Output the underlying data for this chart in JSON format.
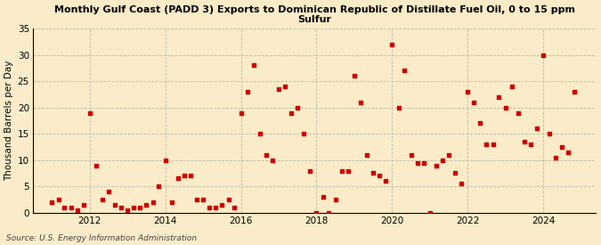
{
  "title": "Monthly Gulf Coast (PADD 3) Exports to Dominican Republic of Distillate Fuel Oil, 0 to 15 ppm\nSulfur",
  "ylabel": "Thousand Barrels per Day",
  "source": "Source: U.S. Energy Information Administration",
  "bg_color": "#faecc8",
  "plot_bg_color": "#faecc8",
  "marker_color": "#cc0000",
  "ylim": [
    0,
    35
  ],
  "yticks": [
    0,
    5,
    10,
    15,
    20,
    25,
    30,
    35
  ],
  "x_values": [
    2011.0,
    2011.17,
    2011.33,
    2011.5,
    2011.67,
    2011.83,
    2012.0,
    2012.17,
    2012.33,
    2012.5,
    2012.67,
    2012.83,
    2013.0,
    2013.17,
    2013.33,
    2013.5,
    2013.67,
    2013.83,
    2014.0,
    2014.17,
    2014.33,
    2014.5,
    2014.67,
    2014.83,
    2015.0,
    2015.17,
    2015.33,
    2015.5,
    2015.67,
    2015.83,
    2016.0,
    2016.17,
    2016.33,
    2016.5,
    2016.67,
    2016.83,
    2017.0,
    2017.17,
    2017.33,
    2017.5,
    2017.67,
    2017.83,
    2018.0,
    2018.17,
    2018.33,
    2018.5,
    2018.67,
    2018.83,
    2019.0,
    2019.17,
    2019.33,
    2019.5,
    2019.67,
    2019.83,
    2020.0,
    2020.17,
    2020.33,
    2020.5,
    2020.67,
    2020.83,
    2021.0,
    2021.17,
    2021.33,
    2021.5,
    2021.67,
    2021.83,
    2022.0,
    2022.17,
    2022.33,
    2022.5,
    2022.67,
    2022.83,
    2023.0,
    2023.17,
    2023.33,
    2023.5,
    2023.67,
    2023.83,
    2024.0,
    2024.17,
    2024.33,
    2024.5,
    2024.67,
    2024.83
  ],
  "y_values": [
    2.0,
    2.5,
    1.0,
    1.0,
    0.5,
    1.5,
    19.0,
    9.0,
    2.5,
    4.0,
    1.5,
    1.0,
    0.5,
    1.0,
    1.0,
    1.5,
    2.0,
    5.0,
    10.0,
    2.0,
    6.5,
    7.0,
    7.0,
    2.5,
    2.5,
    1.0,
    1.0,
    1.5,
    2.5,
    1.0,
    19.0,
    23.0,
    28.0,
    15.0,
    11.0,
    10.0,
    23.5,
    24.0,
    19.0,
    20.0,
    15.0,
    8.0,
    0.0,
    3.0,
    0.0,
    2.5,
    8.0,
    8.0,
    26.0,
    21.0,
    11.0,
    7.5,
    7.0,
    6.0,
    32.0,
    20.0,
    27.0,
    11.0,
    9.5,
    9.5,
    0.0,
    9.0,
    10.0,
    11.0,
    7.5,
    5.5,
    23.0,
    21.0,
    17.0,
    13.0,
    13.0,
    22.0,
    20.0,
    24.0,
    19.0,
    13.5,
    13.0,
    16.0,
    30.0,
    15.0,
    10.5,
    12.5,
    11.5,
    23.0
  ],
  "xticks": [
    2012,
    2014,
    2016,
    2018,
    2020,
    2022,
    2024
  ],
  "xlim": [
    2010.5,
    2025.4
  ]
}
